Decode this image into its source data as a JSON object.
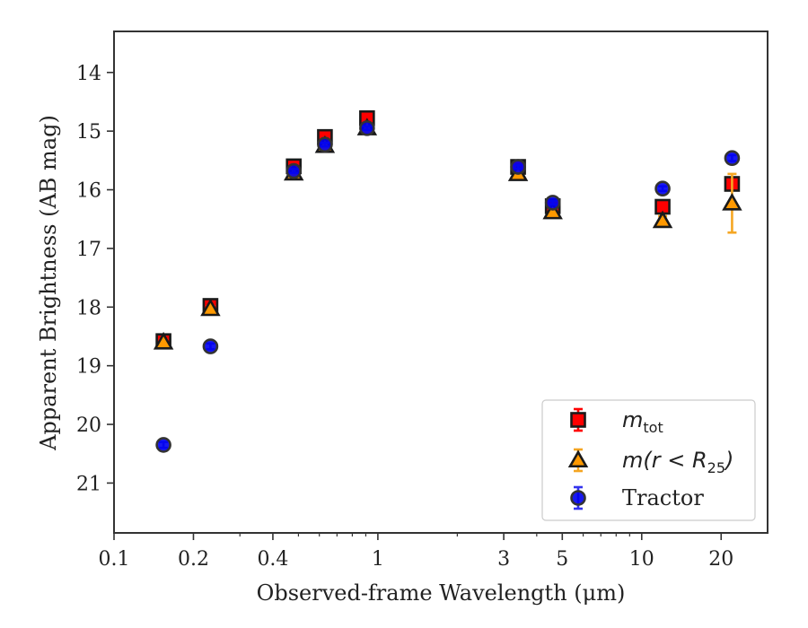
{
  "chart_data": {
    "type": "scatter",
    "xlabel": "Observed-frame Wavelength (μm)",
    "ylabel": "Apparent Brightness (AB mag)",
    "xscale": "log",
    "xlim": [
      0.1,
      30
    ],
    "ylim": [
      21.85,
      13.3
    ],
    "y_inverted": true,
    "x_ticks": [
      0.1,
      0.2,
      0.4,
      1,
      3,
      5,
      10,
      20
    ],
    "x_tick_labels": [
      "0.1",
      "0.2",
      "0.4",
      "1",
      "3",
      "5",
      "10",
      "20"
    ],
    "y_ticks": [
      14,
      15,
      16,
      17,
      18,
      19,
      20,
      21
    ],
    "y_tick_labels": [
      "14",
      "15",
      "16",
      "17",
      "18",
      "19",
      "20",
      "21"
    ],
    "grid": false,
    "legend": {
      "position": "lower-right",
      "entries": [
        {
          "main": "m",
          "sub": "tot",
          "rest": ""
        },
        {
          "main": "m(r < R",
          "sub": "25",
          "rest": ")"
        },
        {
          "main": "Tractor",
          "sub": "",
          "rest": ""
        }
      ]
    },
    "series": [
      {
        "key": "mtot",
        "marker": "square",
        "color": "#ff0000",
        "edge": "#1a1a1a",
        "errcolor": "#ff0000",
        "points": [
          {
            "x": 0.154,
            "y": 18.58,
            "err": 0.05
          },
          {
            "x": 0.232,
            "y": 17.98,
            "err": 0.05
          },
          {
            "x": 0.48,
            "y": 15.6,
            "err": 0.03
          },
          {
            "x": 0.63,
            "y": 15.1,
            "err": 0.03
          },
          {
            "x": 0.91,
            "y": 14.78,
            "err": 0.03
          },
          {
            "x": 3.4,
            "y": 15.61,
            "err": 0.03
          },
          {
            "x": 4.6,
            "y": 16.28,
            "err": 0.05
          },
          {
            "x": 12.0,
            "y": 16.29,
            "err": 0.05
          },
          {
            "x": 22.0,
            "y": 15.9,
            "err": 0.08
          }
        ]
      },
      {
        "key": "mR25",
        "marker": "triangle",
        "color": "#ff9900",
        "edge": "#1a1a1a",
        "errcolor": "#f5a623",
        "points": [
          {
            "x": 0.154,
            "y": 18.6,
            "err": 0.04
          },
          {
            "x": 0.232,
            "y": 18.03,
            "err": 0.04
          },
          {
            "x": 0.48,
            "y": 15.72,
            "err": 0.03
          },
          {
            "x": 0.63,
            "y": 15.25,
            "err": 0.03
          },
          {
            "x": 0.91,
            "y": 14.95,
            "err": 0.03
          },
          {
            "x": 3.4,
            "y": 15.73,
            "err": 0.03
          },
          {
            "x": 4.6,
            "y": 16.38,
            "err": 0.05
          },
          {
            "x": 12.0,
            "y": 16.53,
            "err": 0.08
          },
          {
            "x": 22.0,
            "y": 16.23,
            "err": 0.5
          }
        ]
      },
      {
        "key": "tractor",
        "marker": "circle",
        "color": "#0000ee",
        "edge": "#333333",
        "errcolor": "#3333ee",
        "points": [
          {
            "x": 0.154,
            "y": 20.35,
            "err": 0.05
          },
          {
            "x": 0.232,
            "y": 18.67,
            "err": 0.05
          },
          {
            "x": 0.48,
            "y": 15.68,
            "err": 0.03
          },
          {
            "x": 0.63,
            "y": 15.23,
            "err": 0.03
          },
          {
            "x": 0.91,
            "y": 14.95,
            "err": 0.03
          },
          {
            "x": 3.4,
            "y": 15.61,
            "err": 0.03
          },
          {
            "x": 4.6,
            "y": 16.22,
            "err": 0.03
          },
          {
            "x": 12.0,
            "y": 15.98,
            "err": 0.04
          },
          {
            "x": 22.0,
            "y": 15.46,
            "err": 0.05
          }
        ]
      }
    ]
  }
}
